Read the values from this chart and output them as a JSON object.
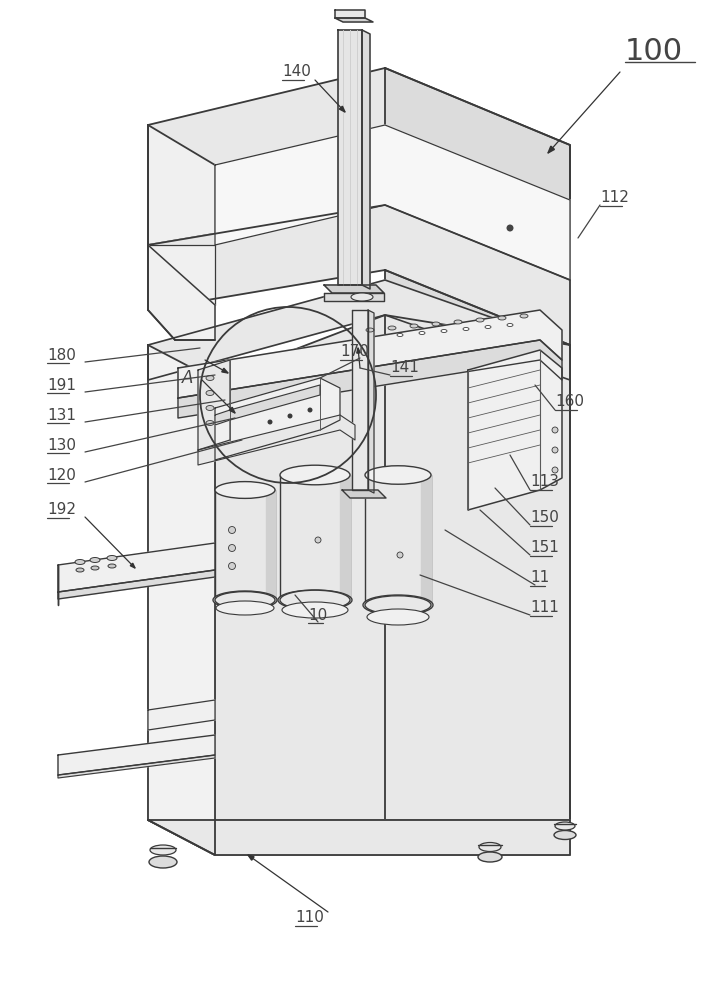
{
  "bg_color": "#ffffff",
  "lc": "#3a3a3a",
  "lc_thin": "#5a5a5a",
  "shade1": "#f0f0f0",
  "shade2": "#e8e8e8",
  "shade3": "#dcdcdc",
  "shade4": "#d0d0d0",
  "shade5": "#c8c8c8",
  "figsize": [
    7.03,
    10.0
  ],
  "dpi": 100
}
